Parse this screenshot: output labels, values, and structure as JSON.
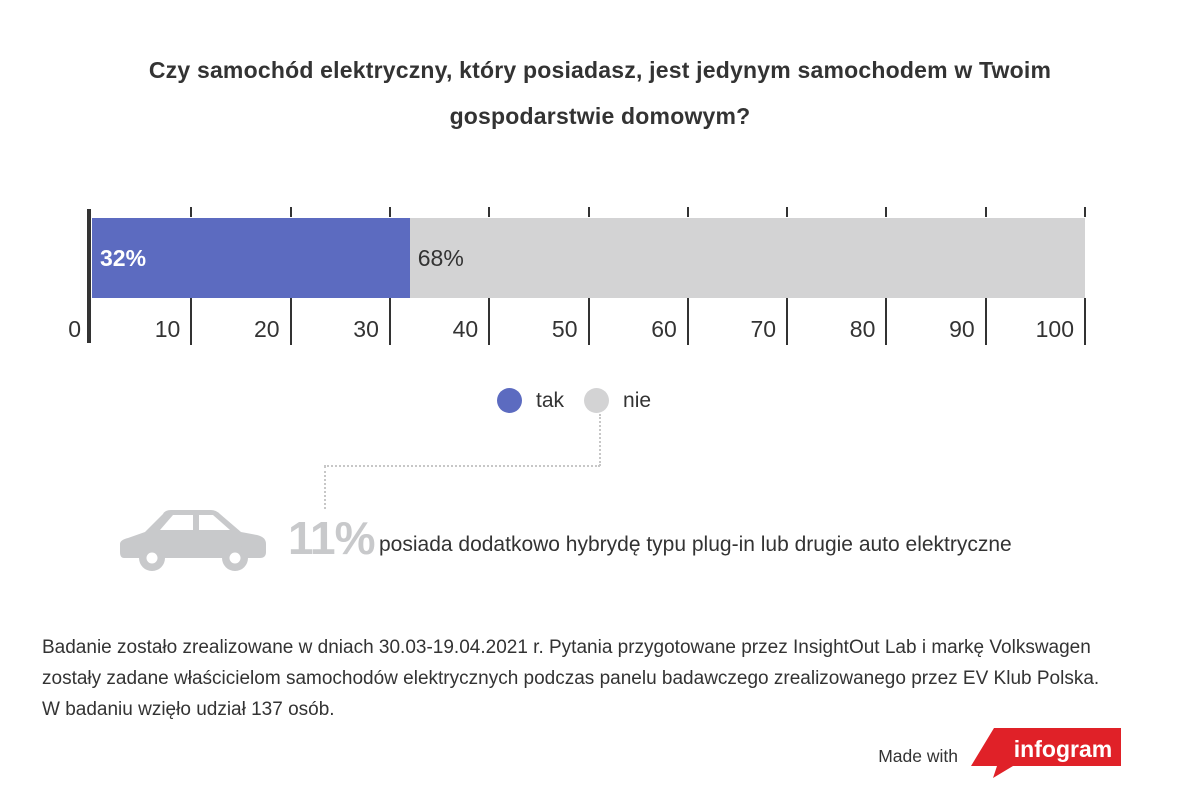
{
  "chart_data": {
    "type": "bar",
    "orientation": "horizontal-stacked",
    "title": "Czy samochód elektryczny, który posiadasz, jest jedynym samochodem w Twoim gospodarstwie domowym?",
    "categories": [
      ""
    ],
    "series": [
      {
        "name": "tak",
        "value": 32,
        "label": "32%",
        "color": "#5c6bc0",
        "label_color": "#ffffff",
        "label_bold": true
      },
      {
        "name": "nie",
        "value": 68,
        "label": "68%",
        "color": "#d3d3d4",
        "label_color": "#333333",
        "label_bold": false
      }
    ],
    "xlim": [
      0,
      100
    ],
    "axis_ticks": [
      0,
      10,
      20,
      30,
      40,
      50,
      60,
      70,
      80,
      90,
      100
    ],
    "grid": false,
    "legend_position": "bottom-center"
  },
  "annotation": {
    "icon": "car-icon",
    "value": "11%",
    "text": "posiada dodatkowo hybrydę typu plug-in lub drugie auto elektryczne"
  },
  "footer": {
    "lines": [
      "Badanie zostało zrealizowane w dniach 30.03-19.04.2021 r. Pytania przygotowane przez InsightOut Lab i markę Volkswagen",
      "zostały zadane właścicielom samochodów elektrycznych podczas panelu badawczego zrealizowanego przez EV Klub Polska.",
      "W badaniu wzięło udział 137 osób."
    ]
  },
  "attribution": {
    "made_with": "Made with",
    "brand": "infogram",
    "brand_color": "#e02128"
  }
}
